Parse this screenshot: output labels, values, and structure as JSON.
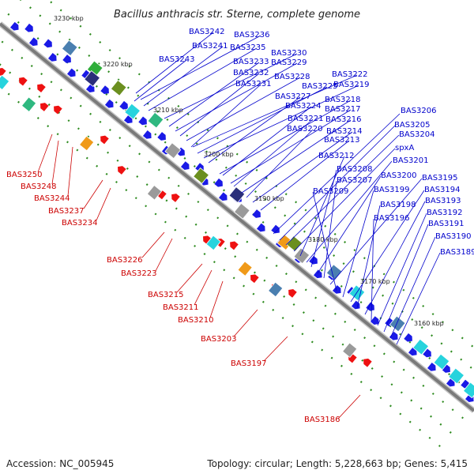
{
  "title": "Bacillus anthracis str. Sterne, complete genome",
  "footer": {
    "accession": "Accession: NC_005945",
    "topology": "Topology: circular; Length: 5,228,663 bp; Genes: 5,415"
  },
  "colors": {
    "backbone": "#7a7a7a",
    "forward_gene": "#1a1ae6",
    "reverse_gene": "#ee1111",
    "forward_label": "#0000cc",
    "reverse_label": "#cc0000",
    "tick": "#2e8b1f",
    "feature_cyan": "#27d3dd",
    "feature_olive": "#6b8f1f",
    "feature_orange": "#f09a19",
    "feature_slate": "#4a7fb0",
    "feature_grey": "#9a9a9a",
    "feature_navy": "#2b2f7a"
  },
  "ticks": [
    "3230 kbp",
    "3220 kbp",
    "3210 kbp",
    "3200 kbp",
    "3190 kbp",
    "3180 kbp",
    "3170 kbp",
    "3160 kbp"
  ],
  "forward_labels": [
    "BAS3242",
    "BAS3236",
    "BAS3241",
    "BAS3235",
    "BAS3243",
    "BAS3230",
    "BAS3233",
    "BAS3229",
    "BAS3232",
    "BAS3228",
    "BAS3222",
    "BAS3231",
    "BAS3225",
    "BAS3219",
    "BAS3227",
    "BAS3218",
    "BAS3224",
    "BAS3217",
    "BAS3221",
    "BAS3216",
    "BAS3220",
    "BAS3214",
    "BAS3213",
    "BAS3206",
    "BAS3205",
    "BAS3204",
    "spxA",
    "BAS3212",
    "BAS3201",
    "BAS3208",
    "BAS3200",
    "BAS3207",
    "BAS3195",
    "BAS3209",
    "BAS3199",
    "BAS3194",
    "BAS3198",
    "BAS3193",
    "BAS3196",
    "BAS3192",
    "BAS3191",
    "BAS3190",
    "BAS3189"
  ],
  "reverse_labels": [
    "BAS3250",
    "BAS3248",
    "BAS3244",
    "BAS3237",
    "BAS3234",
    "BAS3226",
    "BAS3223",
    "BAS3215",
    "BAS3211",
    "BAS3210",
    "BAS3203",
    "BAS3197",
    "BAS3186"
  ]
}
